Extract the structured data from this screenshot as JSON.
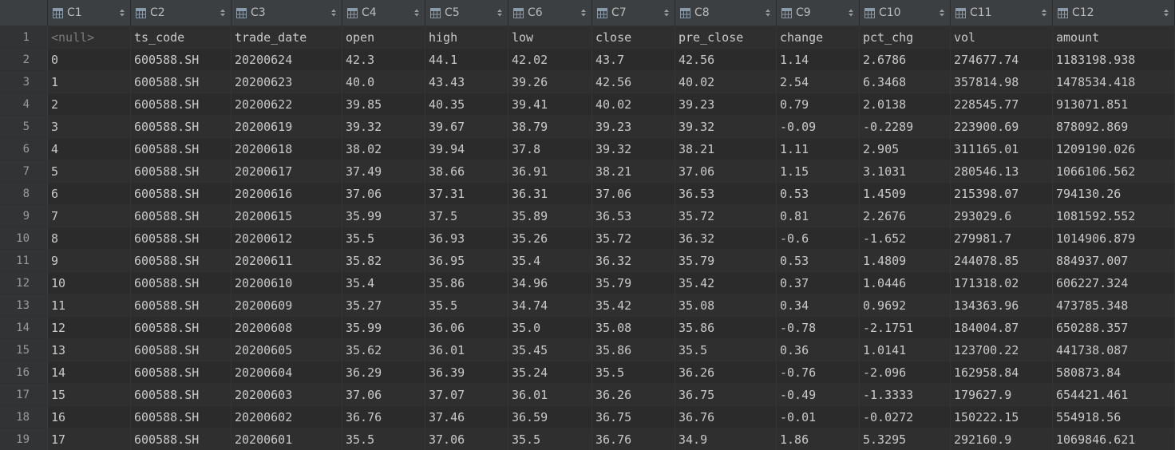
{
  "table": {
    "column_icon": "table-column-icon",
    "sort_icon": "sort-arrows-icon",
    "columns": [
      "C1",
      "C2",
      "C3",
      "C4",
      "C5",
      "C6",
      "C7",
      "C8",
      "C9",
      "C10",
      "C11",
      "C12"
    ],
    "rows": [
      [
        "<null>",
        "ts_code",
        "trade_date",
        "open",
        "high",
        "low",
        "close",
        "pre_close",
        "change",
        "pct_chg",
        "vol",
        "amount"
      ],
      [
        "0",
        "600588.SH",
        "20200624",
        "42.3",
        "44.1",
        "42.02",
        "43.7",
        "42.56",
        "1.14",
        "2.6786",
        "274677.74",
        "1183198.938"
      ],
      [
        "1",
        "600588.SH",
        "20200623",
        "40.0",
        "43.43",
        "39.26",
        "42.56",
        "40.02",
        "2.54",
        "6.3468",
        "357814.98",
        "1478534.418"
      ],
      [
        "2",
        "600588.SH",
        "20200622",
        "39.85",
        "40.35",
        "39.41",
        "40.02",
        "39.23",
        "0.79",
        "2.0138",
        "228545.77",
        "913071.851"
      ],
      [
        "3",
        "600588.SH",
        "20200619",
        "39.32",
        "39.67",
        "38.79",
        "39.23",
        "39.32",
        "-0.09",
        "-0.2289",
        "223900.69",
        "878092.869"
      ],
      [
        "4",
        "600588.SH",
        "20200618",
        "38.02",
        "39.94",
        "37.8",
        "39.32",
        "38.21",
        "1.11",
        "2.905",
        "311165.01",
        "1209190.026"
      ],
      [
        "5",
        "600588.SH",
        "20200617",
        "37.49",
        "38.66",
        "36.91",
        "38.21",
        "37.06",
        "1.15",
        "3.1031",
        "280546.13",
        "1066106.562"
      ],
      [
        "6",
        "600588.SH",
        "20200616",
        "37.06",
        "37.31",
        "36.31",
        "37.06",
        "36.53",
        "0.53",
        "1.4509",
        "215398.07",
        "794130.26"
      ],
      [
        "7",
        "600588.SH",
        "20200615",
        "35.99",
        "37.5",
        "35.89",
        "36.53",
        "35.72",
        "0.81",
        "2.2676",
        "293029.6",
        "1081592.552"
      ],
      [
        "8",
        "600588.SH",
        "20200612",
        "35.5",
        "36.93",
        "35.26",
        "35.72",
        "36.32",
        "-0.6",
        "-1.652",
        "279981.7",
        "1014906.879"
      ],
      [
        "9",
        "600588.SH",
        "20200611",
        "35.82",
        "36.95",
        "35.4",
        "36.32",
        "35.79",
        "0.53",
        "1.4809",
        "244078.85",
        "884937.007"
      ],
      [
        "10",
        "600588.SH",
        "20200610",
        "35.4",
        "35.86",
        "34.96",
        "35.79",
        "35.42",
        "0.37",
        "1.0446",
        "171318.02",
        "606227.324"
      ],
      [
        "11",
        "600588.SH",
        "20200609",
        "35.27",
        "35.5",
        "34.74",
        "35.42",
        "35.08",
        "0.34",
        "0.9692",
        "134363.96",
        "473785.348"
      ],
      [
        "12",
        "600588.SH",
        "20200608",
        "35.99",
        "36.06",
        "35.0",
        "35.08",
        "35.86",
        "-0.78",
        "-2.1751",
        "184004.87",
        "650288.357"
      ],
      [
        "13",
        "600588.SH",
        "20200605",
        "35.62",
        "36.01",
        "35.45",
        "35.86",
        "35.5",
        "0.36",
        "1.0141",
        "123700.22",
        "441738.087"
      ],
      [
        "14",
        "600588.SH",
        "20200604",
        "36.29",
        "36.39",
        "35.24",
        "35.5",
        "36.26",
        "-0.76",
        "-2.096",
        "162958.84",
        "580873.84"
      ],
      [
        "15",
        "600588.SH",
        "20200603",
        "37.06",
        "37.07",
        "36.01",
        "36.26",
        "36.75",
        "-0.49",
        "-1.3333",
        "179627.9",
        "654421.461"
      ],
      [
        "16",
        "600588.SH",
        "20200602",
        "36.76",
        "37.46",
        "36.59",
        "36.75",
        "36.76",
        "-0.01",
        "-0.0272",
        "150222.15",
        "554918.56"
      ],
      [
        "17",
        "600588.SH",
        "20200601",
        "35.5",
        "37.06",
        "35.5",
        "36.76",
        "34.9",
        "1.86",
        "5.3295",
        "292160.9",
        "1069846.621"
      ]
    ],
    "row_numbers": [
      "1",
      "2",
      "3",
      "4",
      "5",
      "6",
      "7",
      "8",
      "9",
      "10",
      "11",
      "12",
      "13",
      "14",
      "15",
      "16",
      "17",
      "18",
      "19"
    ]
  }
}
